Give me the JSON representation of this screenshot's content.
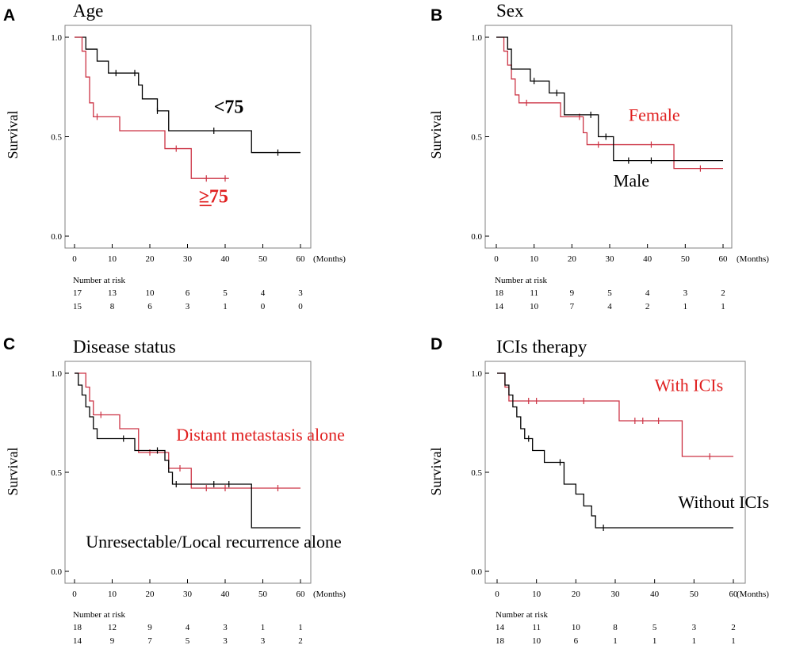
{
  "chart_data": [
    {
      "type": "line",
      "panel": "A",
      "title": "Age",
      "ylabel": "Survival",
      "xlabel": "(Months)",
      "xlim": [
        0,
        60
      ],
      "ylim": [
        0,
        1
      ],
      "xticks": [
        0,
        10,
        20,
        30,
        40,
        50,
        60
      ],
      "yticks": [
        "0.0",
        "0.5",
        "1.0"
      ],
      "risk_header": "Number at risk",
      "series": [
        {
          "name": "<75",
          "label": "<75",
          "color": "#000000",
          "label_color": "#000000",
          "label_bold": true,
          "label_pos": [
            37,
            0.62
          ],
          "steps": [
            [
              0,
              1.0
            ],
            [
              3,
              0.94
            ],
            [
              6,
              0.88
            ],
            [
              9,
              0.82
            ],
            [
              16,
              0.82
            ],
            [
              17,
              0.76
            ],
            [
              18,
              0.69
            ],
            [
              22,
              0.63
            ],
            [
              25,
              0.53
            ],
            [
              47,
              0.53
            ],
            [
              47,
              0.42
            ],
            [
              60,
              0.42
            ]
          ],
          "censors": [
            [
              11,
              0.82
            ],
            [
              16,
              0.82
            ],
            [
              22,
              0.63
            ],
            [
              37,
              0.53
            ],
            [
              54,
              0.42
            ]
          ],
          "risk": [
            "17",
            "13",
            "10",
            "6",
            "5",
            "4",
            "3"
          ]
        },
        {
          "name": "≥75",
          "label": "≥75",
          "color": "#cc3344",
          "label_color": "#e02020",
          "label_bold": true,
          "label_pos": [
            33,
            0.17
          ],
          "steps": [
            [
              0,
              1.0
            ],
            [
              2,
              0.93
            ],
            [
              3,
              0.8
            ],
            [
              4,
              0.67
            ],
            [
              5,
              0.6
            ],
            [
              12,
              0.6
            ],
            [
              12,
              0.53
            ],
            [
              24,
              0.53
            ],
            [
              24,
              0.44
            ],
            [
              31,
              0.44
            ],
            [
              31,
              0.29
            ],
            [
              41,
              0.29
            ]
          ],
          "censors": [
            [
              6,
              0.6
            ],
            [
              27,
              0.44
            ],
            [
              35,
              0.29
            ],
            [
              40,
              0.29
            ]
          ],
          "risk": [
            "15",
            "8",
            "6",
            "3",
            "1",
            "0",
            "0"
          ]
        }
      ]
    },
    {
      "type": "line",
      "panel": "B",
      "title": "Sex",
      "ylabel": "Survival",
      "xlabel": "(Months)",
      "xlim": [
        0,
        60
      ],
      "ylim": [
        0,
        1
      ],
      "xticks": [
        0,
        10,
        20,
        30,
        40,
        50,
        60
      ],
      "yticks": [
        "0.0",
        "0.5",
        "1.0"
      ],
      "risk_header": "Number at risk",
      "series": [
        {
          "name": "Female",
          "label": "Female",
          "color": "#cc3344",
          "label_color": "#e02020",
          "label_bold": false,
          "label_pos": [
            35,
            0.58
          ],
          "steps": [
            [
              0,
              1.0
            ],
            [
              2,
              0.93
            ],
            [
              3,
              0.86
            ],
            [
              4,
              0.79
            ],
            [
              5,
              0.71
            ],
            [
              6,
              0.67
            ],
            [
              16,
              0.67
            ],
            [
              17,
              0.6
            ],
            [
              22,
              0.6
            ],
            [
              23,
              0.52
            ],
            [
              24,
              0.46
            ],
            [
              47,
              0.46
            ],
            [
              47,
              0.34
            ],
            [
              60,
              0.34
            ]
          ],
          "censors": [
            [
              8,
              0.67
            ],
            [
              22,
              0.6
            ],
            [
              27,
              0.46
            ],
            [
              41,
              0.46
            ],
            [
              54,
              0.34
            ]
          ],
          "risk": [
            "14",
            "10",
            "7",
            "4",
            "2",
            "1",
            "1"
          ]
        },
        {
          "name": "Male",
          "label": "Male",
          "color": "#000000",
          "label_color": "#000000",
          "label_bold": false,
          "label_pos": [
            31,
            0.25
          ],
          "steps": [
            [
              0,
              1.0
            ],
            [
              3,
              0.94
            ],
            [
              4,
              0.84
            ],
            [
              8,
              0.84
            ],
            [
              9,
              0.78
            ],
            [
              13,
              0.78
            ],
            [
              14,
              0.72
            ],
            [
              17,
              0.72
            ],
            [
              18,
              0.61
            ],
            [
              26,
              0.61
            ],
            [
              27,
              0.5
            ],
            [
              30,
              0.5
            ],
            [
              31,
              0.38
            ],
            [
              60,
              0.38
            ]
          ],
          "censors": [
            [
              10,
              0.78
            ],
            [
              16,
              0.72
            ],
            [
              25,
              0.61
            ],
            [
              29,
              0.5
            ],
            [
              35,
              0.38
            ],
            [
              41,
              0.38
            ]
          ],
          "risk": [
            "18",
            "11",
            "9",
            "5",
            "4",
            "3",
            "2"
          ]
        }
      ]
    },
    {
      "type": "line",
      "panel": "C",
      "title": "Disease status",
      "ylabel": "Survival",
      "xlabel": "(Months)",
      "xlim": [
        0,
        60
      ],
      "ylim": [
        0,
        1
      ],
      "xticks": [
        0,
        10,
        20,
        30,
        40,
        50,
        60
      ],
      "yticks": [
        "0.0",
        "0.5",
        "1.0"
      ],
      "risk_header": "Number at risk",
      "series": [
        {
          "name": "Distant metastasis alone",
          "label": "Distant metastasis alone",
          "color": "#cc3344",
          "label_color": "#e02020",
          "label_bold": false,
          "label_pos": [
            27,
            0.66
          ],
          "steps": [
            [
              0,
              1.0
            ],
            [
              3,
              0.93
            ],
            [
              4,
              0.86
            ],
            [
              5,
              0.79
            ],
            [
              11,
              0.79
            ],
            [
              12,
              0.72
            ],
            [
              16,
              0.72
            ],
            [
              17,
              0.6
            ],
            [
              24,
              0.6
            ],
            [
              25,
              0.52
            ],
            [
              31,
              0.52
            ],
            [
              31,
              0.42
            ],
            [
              60,
              0.42
            ]
          ],
          "censors": [
            [
              7,
              0.79
            ],
            [
              20,
              0.6
            ],
            [
              28,
              0.52
            ],
            [
              35,
              0.42
            ],
            [
              40,
              0.42
            ],
            [
              54,
              0.42
            ]
          ],
          "risk": [
            "14",
            "9",
            "7",
            "5",
            "3",
            "3",
            "2"
          ]
        },
        {
          "name": "Unresectable/Local recurrence alone",
          "label": "Unresectable/Local recurrence alone",
          "color": "#000000",
          "label_color": "#000000",
          "label_bold": false,
          "label_pos": [
            3,
            0.12
          ],
          "steps": [
            [
              0,
              1.0
            ],
            [
              1,
              0.94
            ],
            [
              2,
              0.89
            ],
            [
              3,
              0.83
            ],
            [
              4,
              0.78
            ],
            [
              5,
              0.72
            ],
            [
              6,
              0.67
            ],
            [
              14,
              0.67
            ],
            [
              16,
              0.61
            ],
            [
              22,
              0.61
            ],
            [
              24,
              0.56
            ],
            [
              25,
              0.5
            ],
            [
              26,
              0.44
            ],
            [
              47,
              0.44
            ],
            [
              47,
              0.22
            ],
            [
              60,
              0.22
            ]
          ],
          "censors": [
            [
              13,
              0.67
            ],
            [
              22,
              0.61
            ],
            [
              27,
              0.44
            ],
            [
              37,
              0.44
            ],
            [
              41,
              0.44
            ]
          ],
          "risk": [
            "18",
            "12",
            "9",
            "4",
            "3",
            "1",
            "1"
          ]
        }
      ]
    },
    {
      "type": "line",
      "panel": "D",
      "title": "ICIs therapy",
      "ylabel": "Survival",
      "xlabel": "(Months)",
      "xlim": [
        0,
        60
      ],
      "ylim": [
        0,
        1
      ],
      "xticks": [
        0,
        10,
        20,
        30,
        40,
        50,
        60
      ],
      "yticks": [
        "0.0",
        "0.5",
        "1.0"
      ],
      "risk_header": "Number at risk",
      "series": [
        {
          "name": "With ICIs",
          "label": "With ICIs",
          "color": "#cc3344",
          "label_color": "#e02020",
          "label_bold": false,
          "label_pos": [
            40,
            0.91
          ],
          "steps": [
            [
              0,
              1.0
            ],
            [
              2,
              0.93
            ],
            [
              3,
              0.86
            ],
            [
              31,
              0.86
            ],
            [
              31,
              0.76
            ],
            [
              47,
              0.76
            ],
            [
              47,
              0.58
            ],
            [
              60,
              0.58
            ]
          ],
          "censors": [
            [
              8,
              0.86
            ],
            [
              10,
              0.86
            ],
            [
              22,
              0.86
            ],
            [
              35,
              0.76
            ],
            [
              37,
              0.76
            ],
            [
              41,
              0.76
            ],
            [
              54,
              0.58
            ]
          ],
          "risk": [
            "14",
            "11",
            "10",
            "8",
            "5",
            "3",
            "2"
          ]
        },
        {
          "name": "Without ICIs",
          "label": "Without ICIs",
          "color": "#000000",
          "label_color": "#000000",
          "label_bold": false,
          "label_pos": [
            46,
            0.32
          ],
          "steps": [
            [
              0,
              1.0
            ],
            [
              2,
              0.94
            ],
            [
              3,
              0.89
            ],
            [
              4,
              0.83
            ],
            [
              5,
              0.78
            ],
            [
              6,
              0.72
            ],
            [
              7,
              0.67
            ],
            [
              9,
              0.61
            ],
            [
              12,
              0.55
            ],
            [
              16,
              0.55
            ],
            [
              17,
              0.44
            ],
            [
              20,
              0.39
            ],
            [
              22,
              0.33
            ],
            [
              24,
              0.28
            ],
            [
              25,
              0.22
            ],
            [
              60,
              0.22
            ]
          ],
          "censors": [
            [
              8,
              0.67
            ],
            [
              16,
              0.55
            ],
            [
              27,
              0.22
            ]
          ],
          "risk": [
            "18",
            "10",
            "6",
            "1",
            "1",
            "1",
            "1"
          ]
        }
      ]
    }
  ]
}
